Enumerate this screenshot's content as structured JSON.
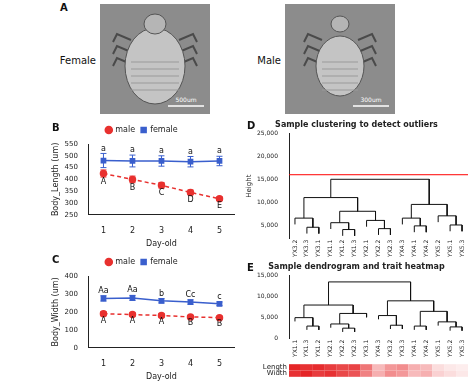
{
  "image_panel": {
    "panel": "A",
    "images": [
      {
        "label": "Female",
        "scale_bar": "500um"
      },
      {
        "label": "Male",
        "scale_bar": "300um"
      }
    ]
  },
  "chart_data": [
    {
      "panel": "B",
      "type": "line",
      "x_label": "Day-old",
      "y_label": "Body_Length (um)",
      "x": [
        1,
        2,
        3,
        4,
        5
      ],
      "xlim": [
        0.5,
        5.5
      ],
      "xticks": [
        1,
        2,
        3,
        4,
        5
      ],
      "ylim": [
        250,
        550
      ],
      "yticks": [
        250,
        300,
        350,
        400,
        450,
        500,
        550
      ],
      "grid": false,
      "legend": "top",
      "series": [
        {
          "name": "male",
          "color": "#e8312f",
          "marker": "circle",
          "line_style": "dashed",
          "values": [
            425,
            400,
            375,
            345,
            318
          ],
          "errors": [
            15,
            14,
            12,
            10,
            8
          ],
          "letters": [
            "A",
            "B",
            "C",
            "D",
            "E"
          ]
        },
        {
          "name": "female",
          "color": "#3a5fcd",
          "marker": "square",
          "line_style": "solid",
          "values": [
            480,
            478,
            478,
            475,
            478
          ],
          "errors": [
            30,
            25,
            22,
            22,
            20
          ],
          "letters": [
            "a",
            "a",
            "a",
            "a",
            "a"
          ]
        }
      ]
    },
    {
      "panel": "C",
      "type": "line",
      "x_label": "Day-old",
      "y_label": "Body_Width (um)",
      "x": [
        1,
        2,
        3,
        4,
        5
      ],
      "xlim": [
        0.5,
        5.5
      ],
      "xticks": [
        1,
        2,
        3,
        4,
        5
      ],
      "ylim": [
        0,
        400
      ],
      "yticks": [
        0,
        100,
        200,
        300,
        400
      ],
      "grid": false,
      "legend": "top",
      "series": [
        {
          "name": "male",
          "color": "#e8312f",
          "marker": "circle",
          "line_style": "dashed",
          "values": [
            190,
            185,
            180,
            172,
            168
          ],
          "errors": [
            12,
            10,
            10,
            8,
            8
          ],
          "letters": [
            "A",
            "A",
            "A",
            "B",
            "B"
          ]
        },
        {
          "name": "female",
          "color": "#3a5fcd",
          "marker": "square",
          "line_style": "solid",
          "values": [
            275,
            278,
            262,
            255,
            245
          ],
          "errors": [
            15,
            14,
            12,
            12,
            10
          ],
          "letters": [
            "Aa",
            "Aa",
            "b",
            "Cc",
            "c"
          ]
        }
      ]
    }
  ],
  "dendrograms": [
    {
      "panel": "D",
      "title": "Sample clustering to detect outliers",
      "y_label": "Height",
      "ylim": [
        2000,
        25000
      ],
      "yticks": [
        5000,
        10000,
        15000,
        20000,
        25000
      ],
      "cut_height": 16000,
      "tree": {
        "height": 15000,
        "children": [
          {
            "height": 11000,
            "children": [
              {
                "height": 6500,
                "children": [
                  "YX3.2",
                  {
                    "height": 4500,
                    "children": [
                      "YX3.3",
                      "YX3.1"
                    ]
                  }
                ]
              },
              {
                "height": 8000,
                "children": [
                  {
                    "height": 5500,
                    "children": [
                      "YX1.1",
                      {
                        "height": 4000,
                        "children": [
                          "YX1.2",
                          "YX1.3"
                        ]
                      }
                    ]
                  },
                  {
                    "height": 6000,
                    "children": [
                      "YX2.1",
                      {
                        "height": 4200,
                        "children": [
                          "YX2.2",
                          "YX2.3"
                        ]
                      }
                    ]
                  }
                ]
              }
            ]
          },
          {
            "height": 9500,
            "children": [
              {
                "height": 6500,
                "children": [
                  "YX4.3",
                  {
                    "height": 4800,
                    "children": [
                      "YX4.1",
                      "YX4.2"
                    ]
                  }
                ]
              },
              {
                "height": 7000,
                "children": [
                  "YX5.2",
                  {
                    "height": 5000,
                    "children": [
                      "YX5.1",
                      "YX5.3"
                    ]
                  }
                ]
              }
            ]
          }
        ]
      }
    },
    {
      "panel": "E",
      "title": "Sample dendrogram and trait heatmap",
      "ylim": [
        0,
        15000
      ],
      "yticks": [
        0,
        5000,
        10000,
        15000
      ],
      "tree": {
        "height": 13500,
        "children": [
          {
            "height": 8000,
            "children": [
              {
                "height": 5000,
                "children": [
                  "YX1.1",
                  {
                    "height": 3000,
                    "children": [
                      "YX1.3",
                      "YX1.2"
                    ]
                  }
                ]
              },
              {
                "height": 6000,
                "children": [
                  {
                    "height": 3500,
                    "children": [
                      "YX2.1",
                      {
                        "height": 2500,
                        "children": [
                          "YX2.2",
                          "YX2.3"
                        ]
                      }
                    ]
                  },
                  "YX3.1"
                ]
              }
            ]
          },
          {
            "height": 9000,
            "children": [
              {
                "height": 5500,
                "children": [
                  "YX4.3",
                  {
                    "height": 3200,
                    "children": [
                      "YX3.2",
                      "YX3.3"
                    ]
                  }
                ]
              },
              {
                "height": 6500,
                "children": [
                  {
                    "height": 3000,
                    "children": [
                      "YX4.1",
                      "YX4.2"
                    ]
                  },
                  {
                    "height": 4000,
                    "children": [
                      "YX5.1",
                      {
                        "height": 2800,
                        "children": [
                          "YX5.2",
                          "YX5.3"
                        ]
                      }
                    ]
                  }
                ]
              }
            ]
          }
        ]
      },
      "heatmap": {
        "rows": [
          "Length",
          "Width"
        ],
        "color": "#e41a1c",
        "cells": [
          [
            0.95,
            0.9,
            0.92,
            0.85,
            0.8,
            0.82,
            0.6,
            0.3,
            0.45,
            0.5,
            0.35,
            0.3,
            0.15,
            0.1,
            0.08
          ],
          [
            0.9,
            0.95,
            0.85,
            0.9,
            0.8,
            0.75,
            0.55,
            0.35,
            0.5,
            0.45,
            0.3,
            0.35,
            0.2,
            0.15,
            0.1
          ]
        ]
      }
    }
  ]
}
